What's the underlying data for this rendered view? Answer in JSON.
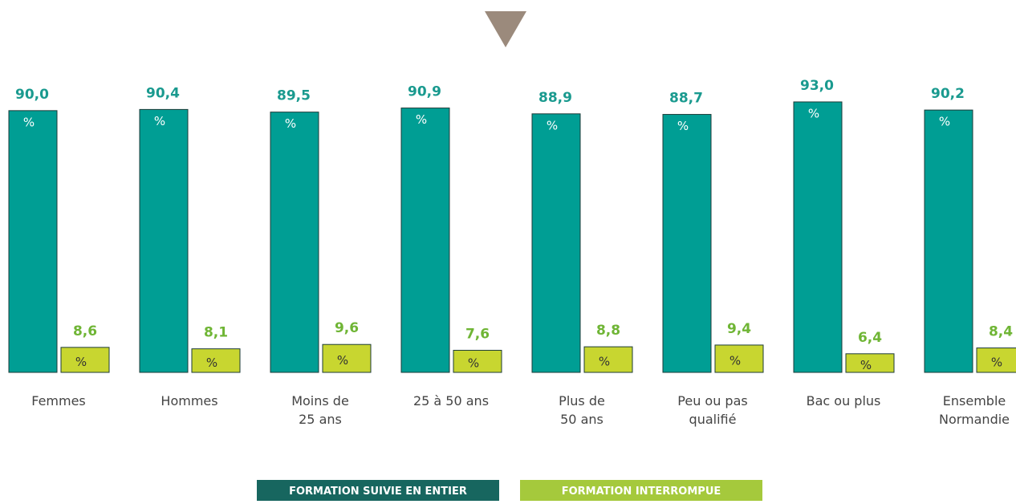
{
  "chart_data": {
    "type": "bar",
    "categories": [
      "Femmes",
      "Hommes",
      "Moins de\n25 ans",
      "25 à 50 ans",
      "Plus de\n50 ans",
      "Peu ou pas\nqualifié",
      "Bac ou plus",
      "Ensemble\nNormandie"
    ],
    "unit": "%",
    "ylim": [
      0,
      100
    ],
    "series": [
      {
        "name": "FORMATION SUIVIE EN ENTIER",
        "color": "#009e94",
        "label_color": "#1a9a8f",
        "legend_color": "#17665f",
        "values": [
          90.0,
          90.4,
          89.5,
          90.9,
          88.9,
          88.7,
          93.0,
          90.2
        ],
        "value_labels": [
          "90,0",
          "90,4",
          "89,5",
          "90,9",
          "88,9",
          "88,7",
          "93,0",
          "90,2"
        ]
      },
      {
        "name": "FORMATION INTERROMPUE",
        "color": "#c8d630",
        "label_color": "#6fb535",
        "legend_color": "#a5c93c",
        "values": [
          8.6,
          8.1,
          9.6,
          7.6,
          8.8,
          9.4,
          6.4,
          8.4
        ],
        "value_labels": [
          "8,6",
          "8,1",
          "9,6",
          "7,6",
          "8,8",
          "9,4",
          "6,4",
          "8,4"
        ]
      }
    ]
  }
}
